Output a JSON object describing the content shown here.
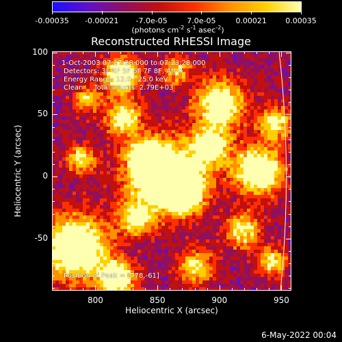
{
  "colorbar": {
    "tick_labels": [
      "-0.00035",
      "-0.00021",
      "-7.0e-05",
      "7.0e-05",
      "0.00021",
      "0.00035"
    ],
    "units_prefix": "(photons cm",
    "units_exp1": "-2",
    "units_mid1": " s",
    "units_exp2": "-1",
    "units_mid2": " asec",
    "units_exp3": "-2",
    "units_suffix": ")",
    "colors": [
      "#1a10ff",
      "#6010c8",
      "#901060",
      "#c01010",
      "#ff3000",
      "#ff9000",
      "#ffd000",
      "#ffffb0"
    ]
  },
  "title": "Reconstructed RHESSI Image",
  "annotations": {
    "time": "1-Oct-2003 07:17:28.000 to 07:23:28.000",
    "detectors": "Detectors: 3F 4F 5F 6F 7F 8F, Att 0",
    "energy": "Energy Range: 12.0 - 25.0 keV",
    "clean": "Clean     Total counts: 2.79E+03",
    "peak": "Position of Peak = [778,-61]"
  },
  "axes": {
    "xlabel": "Heliocentric X (arcsec)",
    "ylabel": "Heliocentric Y (arcsec)",
    "x_ticks": [
      "800",
      "850",
      "900",
      "950"
    ],
    "y_ticks": [
      "100",
      "50",
      "0",
      "-50"
    ],
    "xlim": [
      765,
      958
    ],
    "ylim": [
      -92,
      101
    ]
  },
  "datestamp": "6-May-2022 00:04"
}
